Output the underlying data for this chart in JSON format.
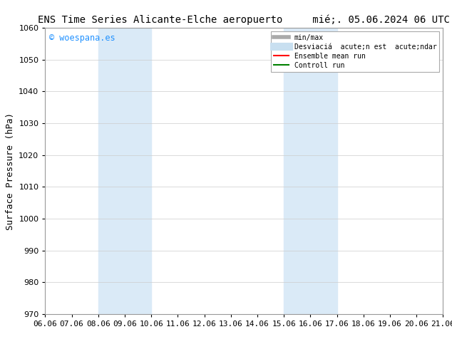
{
  "title": "ENS Time Series Alicante-Elche aeropuerto     mié;. 05.06.2024 06 UTC",
  "ylabel": "Surface Pressure (hPa)",
  "ylim": [
    970,
    1060
  ],
  "yticks": [
    970,
    980,
    990,
    1000,
    1010,
    1020,
    1030,
    1040,
    1050,
    1060
  ],
  "x_labels": [
    "06.06",
    "07.06",
    "08.06",
    "09.06",
    "10.06",
    "11.06",
    "12.06",
    "13.06",
    "14.06",
    "15.06",
    "16.06",
    "17.06",
    "18.06",
    "19.06",
    "20.06",
    "21.06"
  ],
  "x_values": [
    0,
    1,
    2,
    3,
    4,
    5,
    6,
    7,
    8,
    9,
    10,
    11,
    12,
    13,
    14,
    15
  ],
  "shade_regions": [
    {
      "xmin": 2,
      "xmax": 4,
      "color": "#daeaf7"
    },
    {
      "xmin": 9,
      "xmax": 11,
      "color": "#daeaf7"
    }
  ],
  "watermark": "© woespana.es",
  "watermark_color": "#1e90ff",
  "background_color": "#ffffff",
  "legend_label1": "min/max",
  "legend_label2": "Desviaciá  acute;n est  acute;ndar",
  "legend_label3": "Ensemble mean run",
  "legend_label4": "Controll run",
  "legend_color1": "#aaaaaa",
  "legend_color2": "#c8dff0",
  "legend_color3": "#ff0000",
  "legend_color4": "#008000",
  "grid_color": "#cccccc",
  "title_fontsize": 10,
  "tick_fontsize": 8,
  "ylabel_fontsize": 9,
  "fig_width": 6.34,
  "fig_height": 4.9,
  "dpi": 100
}
